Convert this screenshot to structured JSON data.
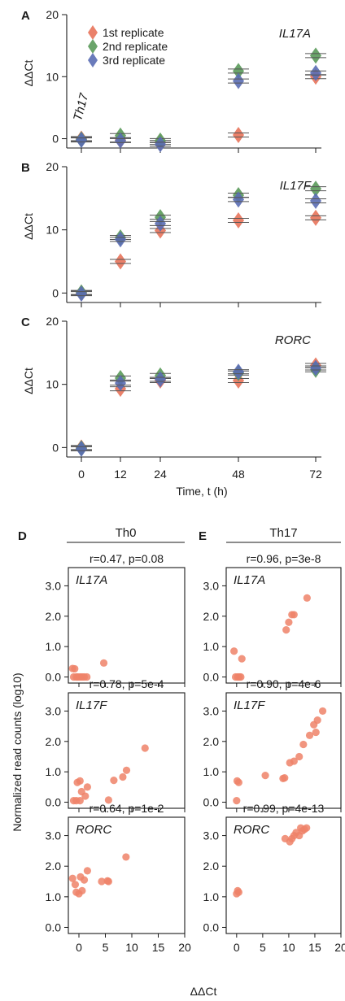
{
  "time_panels": [
    {
      "letter": "A",
      "gene": "IL17A",
      "note": "Th17",
      "ylabel": "ΔΔCt",
      "ylim": [
        -1.5,
        20
      ],
      "yticks": [
        0,
        10,
        20
      ],
      "legend": [
        "1st replicate",
        "2nd replicate",
        "3rd replicate"
      ],
      "series": [
        {
          "name": "1st replicate",
          "color": "#e8735a",
          "values": [
            0.0,
            -0.2,
            -0.6,
            0.6,
            10.0
          ]
        },
        {
          "name": "2nd replicate",
          "color": "#5a9a5a",
          "values": [
            -0.1,
            0.5,
            -0.3,
            10.9,
            13.4
          ]
        },
        {
          "name": "3rd replicate",
          "color": "#5a6db4",
          "values": [
            -0.2,
            -0.3,
            -0.9,
            9.3,
            10.6
          ]
        }
      ]
    },
    {
      "letter": "B",
      "gene": "IL17F",
      "note": "",
      "ylabel": "ΔΔCt",
      "ylim": [
        -1.5,
        20
      ],
      "yticks": [
        0,
        10,
        20
      ],
      "legend": [],
      "series": [
        {
          "name": "",
          "color": "#e8735a",
          "values": [
            0.0,
            5.0,
            9.9,
            11.5,
            11.9
          ]
        },
        {
          "name": "",
          "color": "#5a9a5a",
          "values": [
            0.1,
            8.8,
            12.0,
            15.5,
            16.5
          ]
        },
        {
          "name": "",
          "color": "#5a6db4",
          "values": [
            -0.1,
            8.5,
            11.0,
            14.8,
            14.6
          ]
        }
      ]
    },
    {
      "letter": "C",
      "gene": "RORC",
      "note": "",
      "ylabel": "ΔΔCt",
      "ylim": [
        -1.5,
        20
      ],
      "yticks": [
        0,
        10,
        20
      ],
      "legend": [],
      "series": [
        {
          "name": "",
          "color": "#e8735a",
          "values": [
            0.0,
            9.3,
            10.6,
            10.6,
            13.0
          ]
        },
        {
          "name": "",
          "color": "#5a9a5a",
          "values": [
            -0.1,
            11.0,
            11.4,
            11.8,
            12.3
          ]
        },
        {
          "name": "",
          "color": "#5a6db4",
          "values": [
            -0.2,
            10.2,
            10.8,
            12.0,
            12.6
          ]
        }
      ]
    }
  ],
  "time_axis": {
    "ticks": [
      "0",
      "12",
      "24",
      "48",
      "72"
    ],
    "label": "Time, t (h)"
  },
  "columns": [
    {
      "letter": "D",
      "title": "Th0"
    },
    {
      "letter": "E",
      "title": "Th17"
    }
  ],
  "scatter_ylabel": "Normalized read counts (log10)",
  "scatter_xlabel": "ΔΔCt",
  "scatter_xticks": [
    "0",
    "5",
    "10",
    "15",
    "20"
  ],
  "scatter_yticks": [
    "0.0",
    "1.0",
    "2.0",
    "3.0"
  ],
  "scatter_color": "#ef8368",
  "chart_data": [
    {
      "type": "line",
      "title": "IL17A",
      "x": [
        0,
        12,
        24,
        48,
        72
      ],
      "xlabel": "Time, t (h)",
      "ylabel": "ΔΔCt",
      "ylim": [
        -1.5,
        20
      ],
      "series": [
        {
          "name": "1st replicate",
          "values": [
            0.0,
            -0.2,
            -0.6,
            0.6,
            10.0
          ]
        },
        {
          "name": "2nd replicate",
          "values": [
            -0.1,
            0.5,
            -0.3,
            10.9,
            13.4
          ]
        },
        {
          "name": "3rd replicate",
          "values": [
            -0.2,
            -0.3,
            -0.9,
            9.3,
            10.6
          ]
        }
      ]
    },
    {
      "type": "line",
      "title": "IL17F",
      "x": [
        0,
        12,
        24,
        48,
        72
      ],
      "xlabel": "Time, t (h)",
      "ylabel": "ΔΔCt",
      "ylim": [
        -1.5,
        20
      ],
      "series": [
        {
          "name": "1st replicate",
          "values": [
            0.0,
            5.0,
            9.9,
            11.5,
            11.9
          ]
        },
        {
          "name": "2nd replicate",
          "values": [
            0.1,
            8.8,
            12.0,
            15.5,
            16.5
          ]
        },
        {
          "name": "3rd replicate",
          "values": [
            -0.1,
            8.5,
            11.0,
            14.8,
            14.6
          ]
        }
      ]
    },
    {
      "type": "line",
      "title": "RORC",
      "x": [
        0,
        12,
        24,
        48,
        72
      ],
      "xlabel": "Time, t (h)",
      "ylabel": "ΔΔCt",
      "ylim": [
        -1.5,
        20
      ],
      "series": [
        {
          "name": "1st replicate",
          "values": [
            0.0,
            9.3,
            10.6,
            10.6,
            13.0
          ]
        },
        {
          "name": "2nd replicate",
          "values": [
            -0.1,
            11.0,
            11.4,
            11.8,
            12.3
          ]
        },
        {
          "name": "3rd replicate",
          "values": [
            -0.2,
            10.2,
            10.8,
            12.0,
            12.6
          ]
        }
      ]
    },
    {
      "type": "scatter",
      "group": "Th0",
      "gene": "IL17A",
      "title": "r=0.47, p=0.08",
      "xlabel": "ΔΔCt",
      "ylabel": "Normalized read counts (log10)",
      "xlim": [
        -2,
        20
      ],
      "ylim": [
        -0.2,
        3.6
      ],
      "points": [
        [
          -1.2,
          0.28
        ],
        [
          -0.8,
          0.27
        ],
        [
          -1.0,
          0.0
        ],
        [
          -0.5,
          0.0
        ],
        [
          -0.2,
          0.0
        ],
        [
          0.2,
          0.0
        ],
        [
          0.6,
          0.0
        ],
        [
          1.0,
          0.0
        ],
        [
          1.5,
          0.0
        ],
        [
          4.7,
          0.46
        ]
      ]
    },
    {
      "type": "scatter",
      "group": "Th0",
      "gene": "IL17F",
      "title": "r=0.78, p=5e-4",
      "xlabel": "ΔΔCt",
      "ylabel": "Normalized read counts (log10)",
      "xlim": [
        -2,
        20
      ],
      "ylim": [
        -0.2,
        3.6
      ],
      "points": [
        [
          -1.0,
          0.05
        ],
        [
          -0.5,
          0.05
        ],
        [
          0.2,
          0.05
        ],
        [
          -0.3,
          0.65
        ],
        [
          0.2,
          0.7
        ],
        [
          0.5,
          0.35
        ],
        [
          1.2,
          0.2
        ],
        [
          1.6,
          0.5
        ],
        [
          5.6,
          0.07
        ],
        [
          6.6,
          0.72
        ],
        [
          8.3,
          0.83
        ],
        [
          9.0,
          1.05
        ],
        [
          12.5,
          1.78
        ]
      ]
    },
    {
      "type": "scatter",
      "group": "Th0",
      "gene": "RORC",
      "title": "r=0.64, p=1e-2",
      "xlabel": "ΔΔCt",
      "ylabel": "Normalized read counts (log10)",
      "xlim": [
        -2,
        20
      ],
      "ylim": [
        -0.2,
        3.6
      ],
      "points": [
        [
          -1.2,
          1.6
        ],
        [
          -0.7,
          1.4
        ],
        [
          -0.5,
          1.15
        ],
        [
          0.0,
          1.1
        ],
        [
          0.3,
          1.65
        ],
        [
          0.6,
          1.2
        ],
        [
          1.0,
          1.55
        ],
        [
          1.6,
          1.85
        ],
        [
          4.3,
          1.5
        ],
        [
          5.4,
          1.52
        ],
        [
          5.6,
          1.5
        ],
        [
          8.9,
          2.3
        ]
      ]
    },
    {
      "type": "scatter",
      "group": "Th17",
      "gene": "IL17A",
      "title": "r=0.96, p=3e-8",
      "xlabel": "ΔΔCt",
      "ylabel": "Normalized read counts (log10)",
      "xlim": [
        -2,
        20
      ],
      "ylim": [
        -0.2,
        3.6
      ],
      "points": [
        [
          -0.5,
          0.85
        ],
        [
          0.2,
          0.0
        ],
        [
          -0.2,
          0.0
        ],
        [
          0.5,
          0.0
        ],
        [
          0.8,
          0.0
        ],
        [
          1.0,
          0.6
        ],
        [
          9.5,
          1.55
        ],
        [
          10.0,
          1.8
        ],
        [
          10.6,
          2.05
        ],
        [
          11.0,
          2.05
        ],
        [
          13.5,
          2.6
        ]
      ]
    },
    {
      "type": "scatter",
      "group": "Th17",
      "gene": "IL17F",
      "title": "r=0.90, p=4e-6",
      "xlabel": "ΔΔCt",
      "ylabel": "Normalized read counts (log10)",
      "xlim": [
        -2,
        20
      ],
      "ylim": [
        -0.2,
        3.6
      ],
      "points": [
        [
          0.0,
          0.05
        ],
        [
          0.1,
          0.7
        ],
        [
          0.4,
          0.65
        ],
        [
          5.5,
          0.88
        ],
        [
          8.9,
          0.78
        ],
        [
          9.2,
          0.8
        ],
        [
          10.2,
          1.3
        ],
        [
          11.0,
          1.35
        ],
        [
          12.0,
          1.5
        ],
        [
          12.8,
          1.9
        ],
        [
          14.0,
          2.2
        ],
        [
          14.8,
          2.55
        ],
        [
          15.2,
          2.3
        ],
        [
          15.5,
          2.7
        ],
        [
          16.5,
          3.0
        ]
      ]
    },
    {
      "type": "scatter",
      "group": "Th17",
      "gene": "RORC",
      "title": "r=0.99, p=4e-13",
      "xlabel": "ΔΔCt",
      "ylabel": "Normalized read counts (log10)",
      "xlim": [
        -2,
        20
      ],
      "ylim": [
        -0.2,
        3.6
      ],
      "points": [
        [
          0.0,
          1.1
        ],
        [
          0.2,
          1.2
        ],
        [
          0.4,
          1.15
        ],
        [
          9.3,
          2.9
        ],
        [
          10.2,
          2.8
        ],
        [
          10.6,
          2.9
        ],
        [
          11.0,
          3.0
        ],
        [
          11.4,
          3.1
        ],
        [
          12.0,
          3.0
        ],
        [
          12.3,
          3.25
        ],
        [
          12.6,
          3.15
        ],
        [
          13.0,
          3.2
        ],
        [
          13.4,
          3.25
        ]
      ]
    }
  ]
}
